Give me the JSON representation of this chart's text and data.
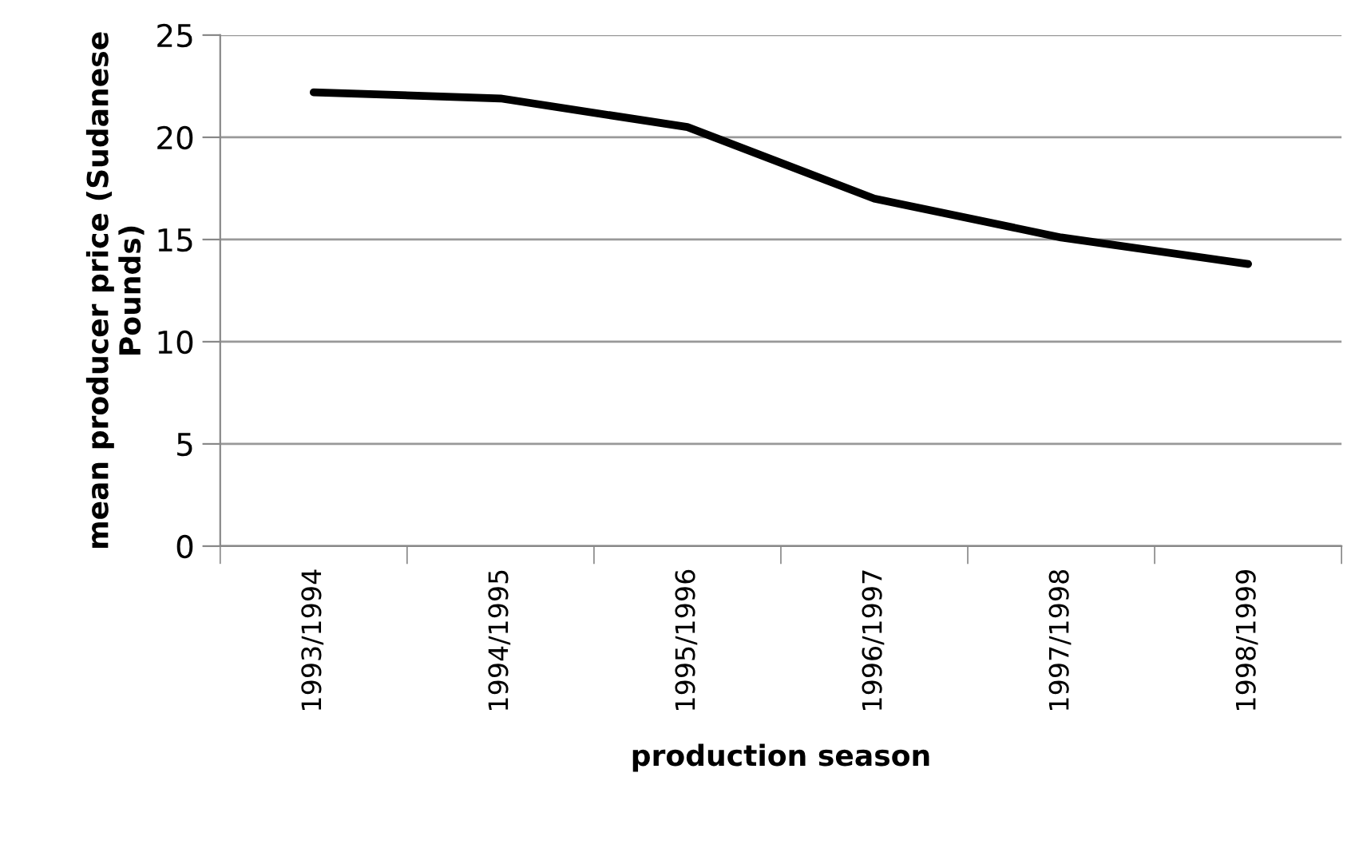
{
  "chart_data": {
    "type": "line",
    "xlabel": "production season",
    "ylabel": "mean producer price (Sudanese Pounds)",
    "categories": [
      "1993/1994",
      "1994/1995",
      "1995/1996",
      "1996/1997",
      "1997/1998",
      "1998/1999"
    ],
    "series": [
      {
        "color": "#000000",
        "values": [
          22.2,
          21.9,
          20.5,
          17.0,
          15.1,
          13.8
        ]
      }
    ],
    "ylim": [
      0,
      25
    ],
    "yticks": [
      0,
      5,
      10,
      15,
      20,
      25
    ],
    "grid": "y",
    "legend": false,
    "marker": "none",
    "line_style": "solid"
  }
}
